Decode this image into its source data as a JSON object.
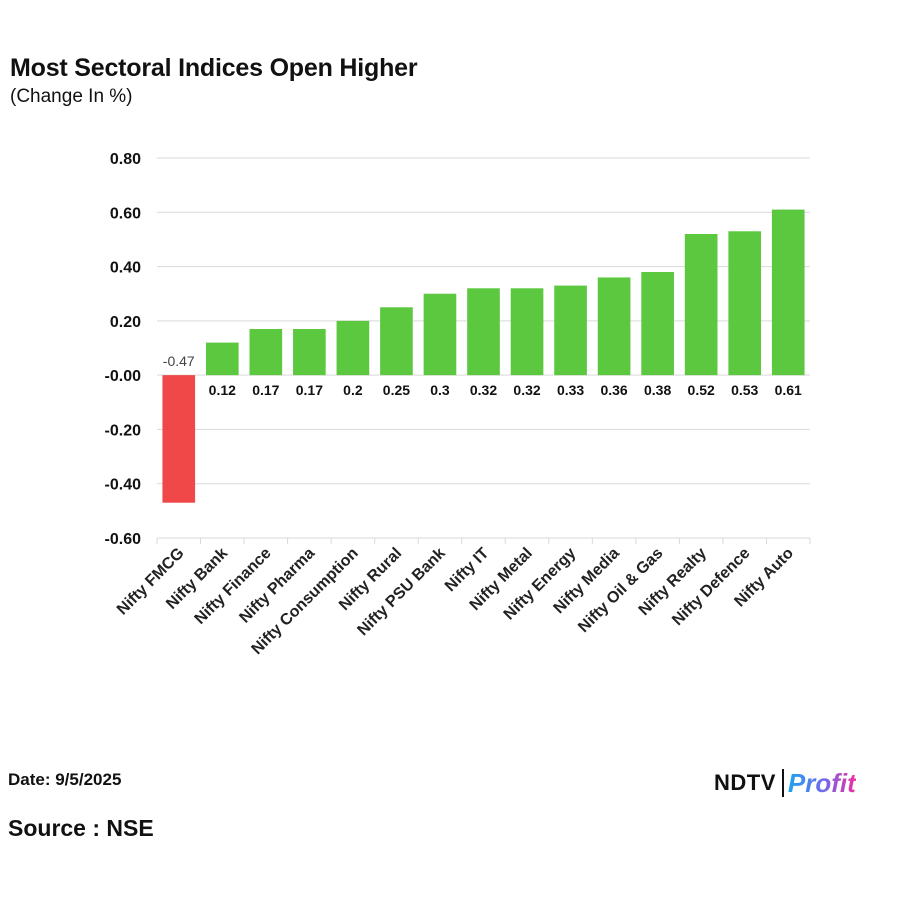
{
  "header": {
    "title": "Most Sectoral Indices Open Higher",
    "subtitle": "(Change In %)"
  },
  "footer": {
    "date": "Date: 9/5/2025",
    "source": "Source : NSE",
    "brand_name": "NDTV",
    "brand_product": "Profit"
  },
  "colors": {
    "positive": "#5cc840",
    "negative": "#f04848",
    "grid": "#d9d9d9",
    "text": "#111111"
  },
  "chart_data": {
    "type": "bar",
    "title": "Most Sectoral Indices Open Higher",
    "subtitle": "(Change In %)",
    "categories": [
      "Nifty FMCG",
      "Nifty Bank",
      "Nifty Finance",
      "Nifty Pharma",
      "Nifty Consumption",
      "Nifty Rural",
      "Nifty PSU Bank",
      "Nifty IT",
      "Nifty Metal",
      "Nifty Energy",
      "Nifty Media",
      "Nifty Oil & Gas",
      "Nifty Realty",
      "Nifty Defence",
      "Nifty Auto"
    ],
    "values": [
      -0.47,
      0.12,
      0.17,
      0.17,
      0.2,
      0.25,
      0.3,
      0.32,
      0.32,
      0.33,
      0.36,
      0.38,
      0.52,
      0.53,
      0.61
    ],
    "value_labels": [
      "-0.47",
      "0.12",
      "0.17",
      "0.17",
      "0.2",
      "0.25",
      "0.3",
      "0.32",
      "0.32",
      "0.33",
      "0.36",
      "0.38",
      "0.52",
      "0.53",
      "0.61"
    ],
    "ylim": [
      -0.6,
      0.8
    ],
    "yticks": [
      0.8,
      0.6,
      0.4,
      0.2,
      0.0,
      -0.2,
      -0.4,
      -0.6
    ],
    "ytick_labels": [
      "0.80",
      "0.60",
      "0.40",
      "0.20",
      "-0.00",
      "-0.20",
      "-0.40",
      "-0.60"
    ],
    "xlabel": "",
    "ylabel": "",
    "grid": true,
    "legend": "none"
  }
}
